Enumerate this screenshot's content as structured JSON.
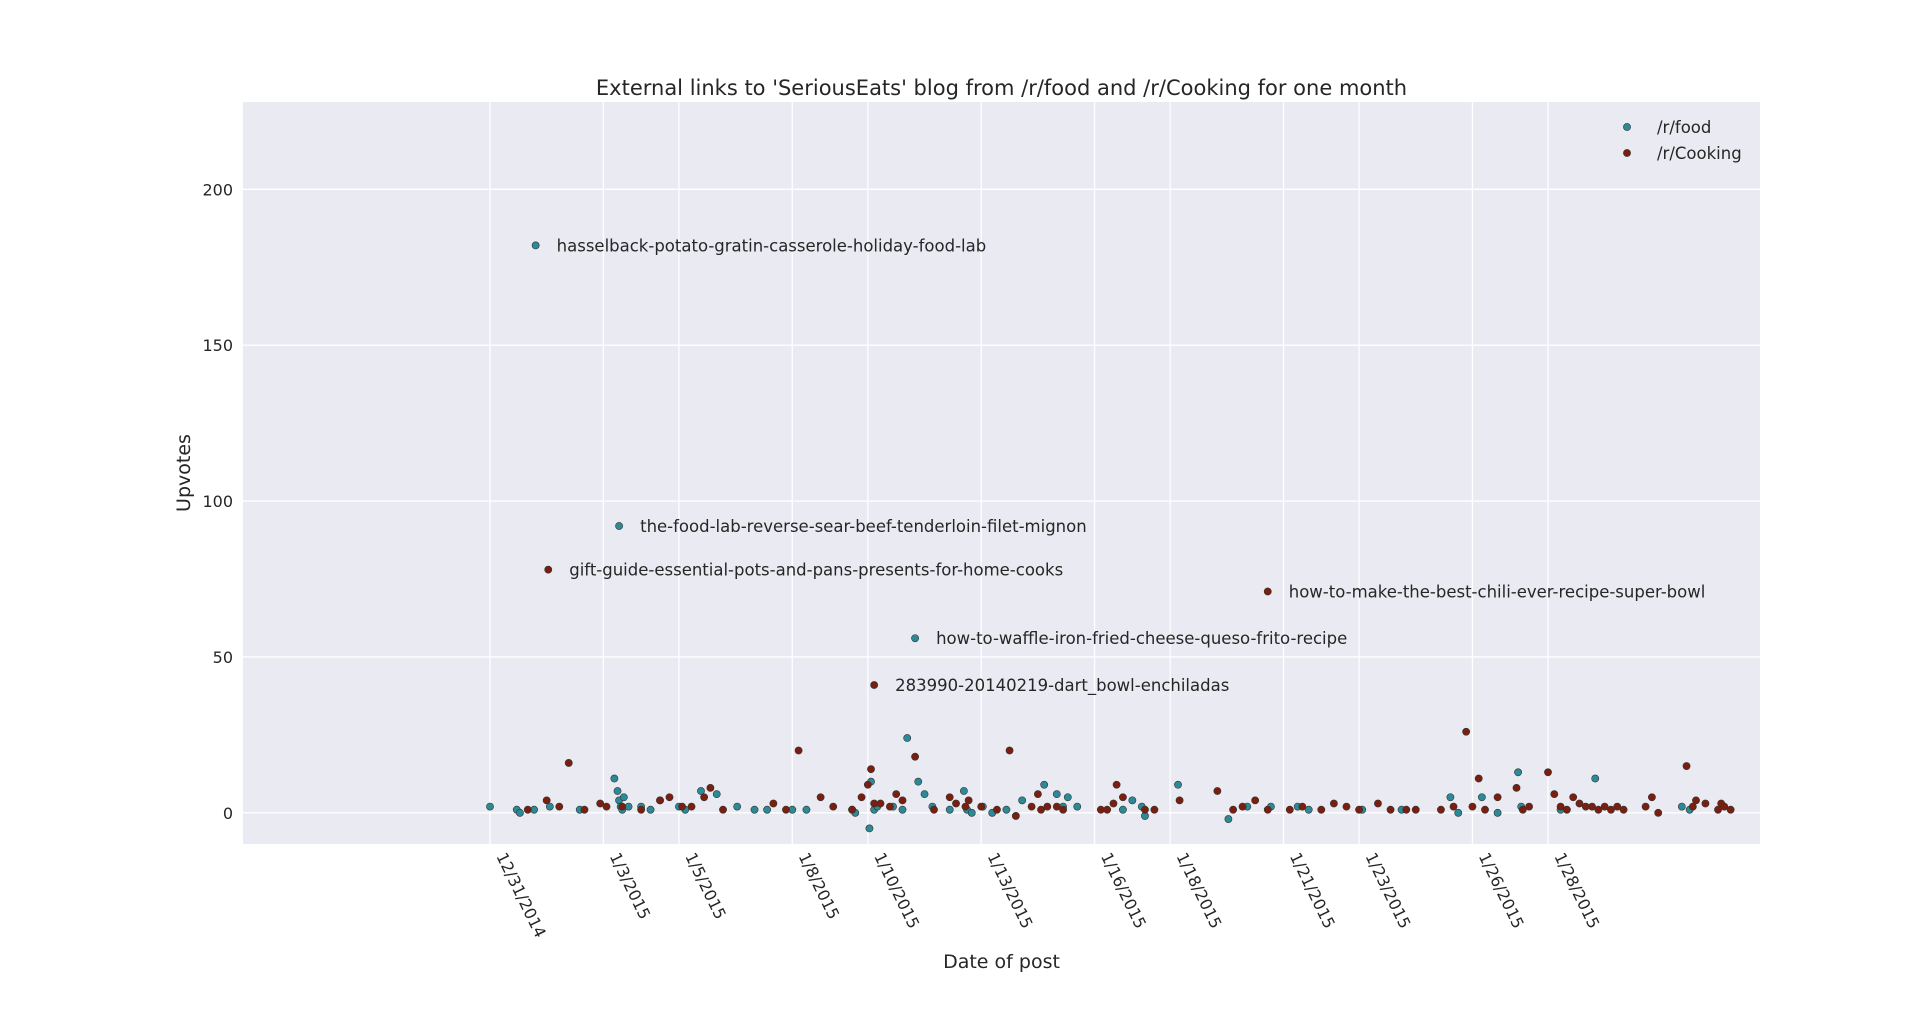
{
  "chart_data": {
    "type": "scatter",
    "title": "External links to 'SeriousEats' blog from /r/food and /r/Cooking for one month",
    "xlabel": "Date of post",
    "ylabel": "Upvotes",
    "xlim": [
      "2014-12-28",
      "2015-02-02"
    ],
    "ylim": [
      -10,
      228
    ],
    "yticks": [
      0,
      50,
      100,
      150,
      200
    ],
    "xticks": [
      {
        "date": "2014-12-31",
        "label": "12/31/2014"
      },
      {
        "date": "2015-01-03",
        "label": "1/3/2015"
      },
      {
        "date": "2015-01-05",
        "label": "1/5/2015"
      },
      {
        "date": "2015-01-08",
        "label": "1/8/2015"
      },
      {
        "date": "2015-01-10",
        "label": "1/10/2015"
      },
      {
        "date": "2015-01-13",
        "label": "1/13/2015"
      },
      {
        "date": "2015-01-16",
        "label": "1/16/2015"
      },
      {
        "date": "2015-01-18",
        "label": "1/18/2015"
      },
      {
        "date": "2015-01-21",
        "label": "1/21/2015"
      },
      {
        "date": "2015-01-23",
        "label": "1/23/2015"
      },
      {
        "date": "2015-01-26",
        "label": "1/26/2015"
      },
      {
        "date": "2015-01-28",
        "label": "1/28/2015"
      }
    ],
    "grid": true,
    "legend": "top-right",
    "colors": {
      "background": "#eaeaf2",
      "grid": "#ffffff",
      "food": "#2b8a96",
      "cooking": "#7a1e10",
      "edge": "#333333"
    },
    "series": [
      {
        "name": "/r/food",
        "points": [
          [
            "2014-12-31 00:00",
            2
          ],
          [
            "2014-12-31 17:00",
            1
          ],
          [
            "2014-12-31 19:00",
            0
          ],
          [
            "2015-01-01 04:00",
            1
          ],
          [
            "2015-01-01 14:00",
            2
          ],
          [
            "2015-01-02 09:00",
            1
          ],
          [
            "2015-01-03 07:00",
            11
          ],
          [
            "2015-01-03 09:00",
            7
          ],
          [
            "2015-01-03 10:00",
            4
          ],
          [
            "2015-01-03 11:00",
            2
          ],
          [
            "2015-01-03 12:00",
            1
          ],
          [
            "2015-01-03 13:00",
            5
          ],
          [
            "2015-01-03 16:00",
            2
          ],
          [
            "2015-01-04 00:00",
            2
          ],
          [
            "2015-01-04 06:00",
            1
          ],
          [
            "2015-01-04 12:00",
            4
          ],
          [
            "2015-01-05 00:00",
            2
          ],
          [
            "2015-01-05 04:00",
            1
          ],
          [
            "2015-01-05 14:00",
            7
          ],
          [
            "2015-01-06 00:00",
            6
          ],
          [
            "2015-01-06 13:00",
            2
          ],
          [
            "2015-01-07 00:00",
            1
          ],
          [
            "2015-01-07 08:00",
            1
          ],
          [
            "2015-01-08 00:00",
            1
          ],
          [
            "2015-01-08 09:00",
            1
          ],
          [
            "2015-01-09 14:00",
            1
          ],
          [
            "2015-01-09 16:00",
            0
          ],
          [
            "2015-01-10 01:00",
            -5
          ],
          [
            "2015-01-10 02:00",
            10
          ],
          [
            "2015-01-10 04:00",
            1
          ],
          [
            "2015-01-10 06:00",
            2
          ],
          [
            "2015-01-10 16:00",
            2
          ],
          [
            "2015-01-10 22:00",
            1
          ],
          [
            "2015-01-11 01:00",
            24
          ],
          [
            "2015-01-11 08:00",
            10
          ],
          [
            "2015-01-11 12:00",
            6
          ],
          [
            "2015-01-11 17:00",
            2
          ],
          [
            "2015-01-12 04:00",
            1
          ],
          [
            "2015-01-12 13:00",
            7
          ],
          [
            "2015-01-12 15:00",
            1
          ],
          [
            "2015-01-12 18:00",
            0
          ],
          [
            "2015-01-13 01:00",
            2
          ],
          [
            "2015-01-13 07:00",
            0
          ],
          [
            "2015-01-13 16:00",
            1
          ],
          [
            "2015-01-14 02:00",
            4
          ],
          [
            "2015-01-14 16:00",
            9
          ],
          [
            "2015-01-15 00:00",
            6
          ],
          [
            "2015-01-15 04:00",
            2
          ],
          [
            "2015-01-15 07:00",
            5
          ],
          [
            "2015-01-15 13:00",
            2
          ],
          [
            "2015-01-16 18:00",
            1
          ],
          [
            "2015-01-17 00:00",
            4
          ],
          [
            "2015-01-17 06:00",
            2
          ],
          [
            "2015-01-17 08:00",
            -1
          ],
          [
            "2015-01-18 05:00",
            9
          ],
          [
            "2015-01-19 13:00",
            -2
          ],
          [
            "2015-01-20 01:00",
            2
          ],
          [
            "2015-01-20 16:00",
            2
          ],
          [
            "2015-01-21 09:00",
            2
          ],
          [
            "2015-01-21 16:00",
            1
          ],
          [
            "2015-01-23 02:00",
            1
          ],
          [
            "2015-01-24 03:00",
            1
          ],
          [
            "2015-01-25 10:00",
            5
          ],
          [
            "2015-01-25 15:00",
            0
          ],
          [
            "2015-01-26 06:00",
            5
          ],
          [
            "2015-01-26 16:00",
            0
          ],
          [
            "2015-01-27 05:00",
            13
          ],
          [
            "2015-01-27 07:00",
            2
          ],
          [
            "2015-01-28 08:00",
            1
          ],
          [
            "2015-01-29 06:00",
            11
          ],
          [
            "2015-01-31 13:00",
            2
          ],
          [
            "2015-01-31 18:00",
            1
          ],
          [
            "2015-01-01 05:00",
            182
          ],
          [
            "2015-01-03 10:00",
            92
          ],
          [
            "2015-01-11 06:00",
            56
          ]
        ]
      },
      {
        "name": "/r/Cooking",
        "points": [
          [
            "2015-01-01 00:00",
            1
          ],
          [
            "2015-01-01 12:00",
            4
          ],
          [
            "2015-01-01 20:00",
            2
          ],
          [
            "2015-01-02 02:00",
            16
          ],
          [
            "2015-01-02 12:00",
            1
          ],
          [
            "2015-01-02 22:00",
            3
          ],
          [
            "2015-01-03 02:00",
            2
          ],
          [
            "2015-01-03 12:00",
            2
          ],
          [
            "2015-01-04 00:00",
            1
          ],
          [
            "2015-01-04 12:00",
            4
          ],
          [
            "2015-01-04 18:00",
            5
          ],
          [
            "2015-01-05 02:00",
            2
          ],
          [
            "2015-01-05 08:00",
            2
          ],
          [
            "2015-01-05 16:00",
            5
          ],
          [
            "2015-01-05 20:00",
            8
          ],
          [
            "2015-01-06 04:00",
            1
          ],
          [
            "2015-01-07 12:00",
            3
          ],
          [
            "2015-01-07 20:00",
            1
          ],
          [
            "2015-01-08 04:00",
            20
          ],
          [
            "2015-01-08 18:00",
            5
          ],
          [
            "2015-01-09 02:00",
            2
          ],
          [
            "2015-01-09 14:00",
            1
          ],
          [
            "2015-01-09 20:00",
            5
          ],
          [
            "2015-01-10 00:00",
            9
          ],
          [
            "2015-01-10 02:00",
            14
          ],
          [
            "2015-01-10 04:00",
            3
          ],
          [
            "2015-01-10 08:00",
            3
          ],
          [
            "2015-01-10 14:00",
            2
          ],
          [
            "2015-01-10 18:00",
            6
          ],
          [
            "2015-01-10 22:00",
            4
          ],
          [
            "2015-01-11 06:00",
            18
          ],
          [
            "2015-01-11 18:00",
            1
          ],
          [
            "2015-01-12 04:00",
            5
          ],
          [
            "2015-01-12 08:00",
            3
          ],
          [
            "2015-01-12 14:00",
            2
          ],
          [
            "2015-01-12 16:00",
            4
          ],
          [
            "2015-01-13 00:00",
            2
          ],
          [
            "2015-01-13 10:00",
            1
          ],
          [
            "2015-01-13 18:00",
            20
          ],
          [
            "2015-01-13 22:00",
            -1
          ],
          [
            "2015-01-14 08:00",
            2
          ],
          [
            "2015-01-14 12:00",
            6
          ],
          [
            "2015-01-14 14:00",
            1
          ],
          [
            "2015-01-14 18:00",
            2
          ],
          [
            "2015-01-15 00:00",
            2
          ],
          [
            "2015-01-15 04:00",
            1
          ],
          [
            "2015-01-16 04:00",
            1
          ],
          [
            "2015-01-16 08:00",
            1
          ],
          [
            "2015-01-16 12:00",
            3
          ],
          [
            "2015-01-16 14:00",
            9
          ],
          [
            "2015-01-16 18:00",
            5
          ],
          [
            "2015-01-17 08:00",
            1
          ],
          [
            "2015-01-17 14:00",
            1
          ],
          [
            "2015-01-18 06:00",
            4
          ],
          [
            "2015-01-19 06:00",
            7
          ],
          [
            "2015-01-19 16:00",
            1
          ],
          [
            "2015-01-19 22:00",
            2
          ],
          [
            "2015-01-20 06:00",
            4
          ],
          [
            "2015-01-20 14:00",
            1
          ],
          [
            "2015-01-21 04:00",
            1
          ],
          [
            "2015-01-21 12:00",
            2
          ],
          [
            "2015-01-22 00:00",
            1
          ],
          [
            "2015-01-22 08:00",
            3
          ],
          [
            "2015-01-22 16:00",
            2
          ],
          [
            "2015-01-23 00:00",
            1
          ],
          [
            "2015-01-23 12:00",
            3
          ],
          [
            "2015-01-23 20:00",
            1
          ],
          [
            "2015-01-24 06:00",
            1
          ],
          [
            "2015-01-24 12:00",
            1
          ],
          [
            "2015-01-25 04:00",
            1
          ],
          [
            "2015-01-25 12:00",
            2
          ],
          [
            "2015-01-25 20:00",
            26
          ],
          [
            "2015-01-26 00:00",
            2
          ],
          [
            "2015-01-26 04:00",
            11
          ],
          [
            "2015-01-26 08:00",
            1
          ],
          [
            "2015-01-26 16:00",
            5
          ],
          [
            "2015-01-27 04:00",
            8
          ],
          [
            "2015-01-27 08:00",
            1
          ],
          [
            "2015-01-27 12:00",
            2
          ],
          [
            "2015-01-28 00:00",
            13
          ],
          [
            "2015-01-28 04:00",
            6
          ],
          [
            "2015-01-28 08:00",
            2
          ],
          [
            "2015-01-28 12:00",
            1
          ],
          [
            "2015-01-28 16:00",
            5
          ],
          [
            "2015-01-28 20:00",
            3
          ],
          [
            "2015-01-29 00:00",
            2
          ],
          [
            "2015-01-29 04:00",
            2
          ],
          [
            "2015-01-29 08:00",
            1
          ],
          [
            "2015-01-29 12:00",
            2
          ],
          [
            "2015-01-29 16:00",
            1
          ],
          [
            "2015-01-29 20:00",
            2
          ],
          [
            "2015-01-30 00:00",
            1
          ],
          [
            "2015-01-30 14:00",
            2
          ],
          [
            "2015-01-30 18:00",
            5
          ],
          [
            "2015-01-30 22:00",
            0
          ],
          [
            "2015-01-31 16:00",
            15
          ],
          [
            "2015-01-31 20:00",
            2
          ],
          [
            "2015-01-31 22:00",
            4
          ],
          [
            "2015-02-01 04:00",
            3
          ],
          [
            "2015-02-01 12:00",
            1
          ],
          [
            "2015-02-01 14:00",
            3
          ],
          [
            "2015-02-01 16:00",
            2
          ],
          [
            "2015-02-01 20:00",
            1
          ],
          [
            "2015-01-01 13:00",
            78
          ],
          [
            "2015-01-20 14:00",
            71
          ],
          [
            "2015-01-10 04:00",
            41
          ]
        ]
      }
    ],
    "annotations": [
      {
        "date": "2015-01-01 05:00",
        "y": 182,
        "text": "hasselback-potato-gratin-casserole-holiday-food-lab"
      },
      {
        "date": "2015-01-03 10:00",
        "y": 92,
        "text": "the-food-lab-reverse-sear-beef-tenderloin-filet-mignon"
      },
      {
        "date": "2015-01-01 13:00",
        "y": 78,
        "text": "gift-guide-essential-pots-and-pans-presents-for-home-cooks"
      },
      {
        "date": "2015-01-20 14:00",
        "y": 71,
        "text": "how-to-make-the-best-chili-ever-recipe-super-bowl"
      },
      {
        "date": "2015-01-11 06:00",
        "y": 56,
        "text": "how-to-waffle-iron-fried-cheese-queso-frito-recipe"
      },
      {
        "date": "2015-01-10 04:00",
        "y": 41,
        "text": "283990-20140219-dart_bowl-enchiladas"
      }
    ]
  }
}
